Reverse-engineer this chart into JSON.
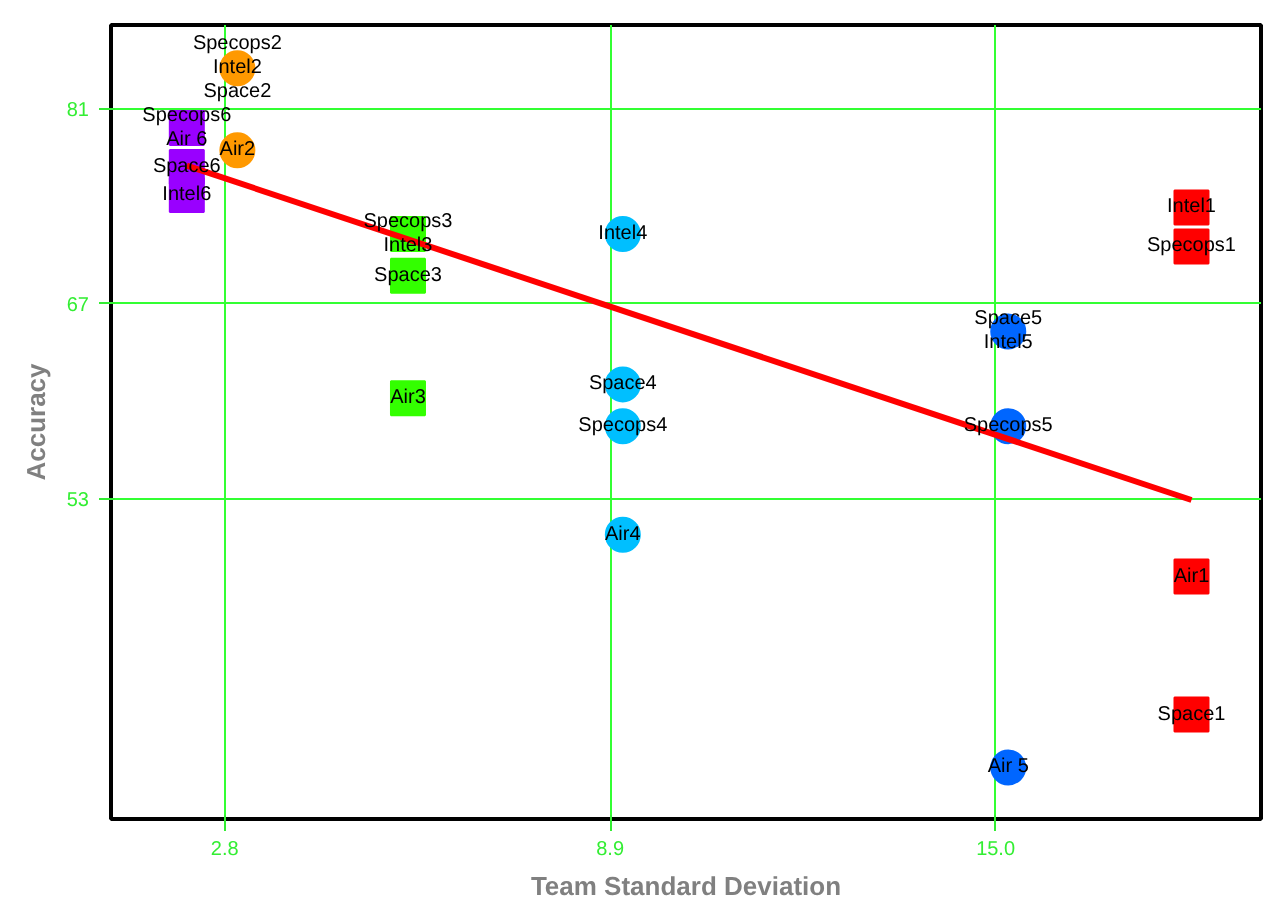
{
  "chart_data": {
    "type": "scatter",
    "xlabel": "Team Standard Deviation",
    "ylabel": "Accuracy",
    "xlim": [
      1,
      19.2
    ],
    "ylim": [
      30,
      87
    ],
    "xticks": [
      2.8,
      8.9,
      {
        "value": 15,
        "label": "15.0"
      }
    ],
    "yticks": [
      53,
      67,
      81
    ],
    "grid": true,
    "series": [
      {
        "color": "#9900ff",
        "marker": "square",
        "x": [
          2.2,
          2.2,
          2.2
        ],
        "values": [
          79.6,
          76.8,
          74.8
        ]
      },
      {
        "color": "#ff9900",
        "marker": "circle",
        "x": [
          3.0,
          3.0
        ],
        "values": [
          83.9,
          78.0
        ]
      },
      {
        "color": "#33ff00",
        "marker": "square",
        "x": [
          5.7,
          5.7,
          5.7
        ],
        "values": [
          72.0,
          69.0,
          60.2
        ]
      },
      {
        "color": "#00bfff",
        "marker": "circle",
        "x": [
          9.1,
          9.1,
          9.1,
          9.1
        ],
        "values": [
          72.0,
          61.2,
          58.2,
          50.4
        ]
      },
      {
        "color": "#0066ff",
        "marker": "circle",
        "x": [
          15.2,
          15.2,
          15.2
        ],
        "values": [
          65.0,
          58.2,
          33.7
        ]
      },
      {
        "color": "#ff0000",
        "marker": "square",
        "x": [
          18.1,
          18.1,
          18.1,
          18.1
        ],
        "values": [
          73.9,
          71.1,
          47.4,
          37.5
        ]
      },
      {
        "type": "line",
        "color": "#ff0000",
        "marker": "none",
        "x": [
          2.2,
          18.1
        ],
        "values": [
          76.9,
          52.9
        ]
      }
    ],
    "annotations": [
      {
        "text": "Specops6",
        "x": 2.2,
        "y": 79.6
      },
      {
        "text": "Air 6",
        "x": 2.2,
        "y": 79.6
      },
      {
        "text": "Space6",
        "x": 2.2,
        "y": 76.8
      },
      {
        "text": "Intel6",
        "x": 2.2,
        "y": 74.8
      },
      {
        "text": "Specops2",
        "x": 3.0,
        "y": 83.9
      },
      {
        "text": "Intel2",
        "x": 3.0,
        "y": 83.9
      },
      {
        "text": "Space2",
        "x": 3.0,
        "y": 83.9
      },
      {
        "text": "Air2",
        "x": 3.0,
        "y": 78.0
      },
      {
        "text": "Specops3",
        "x": 5.7,
        "y": 72.0
      },
      {
        "text": "Intel3",
        "x": 5.7,
        "y": 72.0
      },
      {
        "text": "Space3",
        "x": 5.7,
        "y": 69.0
      },
      {
        "text": "Air3",
        "x": 5.7,
        "y": 60.2
      },
      {
        "text": "Intel4",
        "x": 9.1,
        "y": 72.0
      },
      {
        "text": "Space4",
        "x": 9.1,
        "y": 61.2
      },
      {
        "text": "Specops4",
        "x": 9.1,
        "y": 58.2
      },
      {
        "text": "Air4",
        "x": 9.1,
        "y": 50.4
      },
      {
        "text": "Space5",
        "x": 15.2,
        "y": 65.0
      },
      {
        "text": "Intel5",
        "x": 15.2,
        "y": 65.0
      },
      {
        "text": "Specops5",
        "x": 15.2,
        "y": 58.2
      },
      {
        "text": "Air 5",
        "x": 15.2,
        "y": 33.7
      },
      {
        "text": "Intel1",
        "x": 18.1,
        "y": 73.9
      },
      {
        "text": "Specops1",
        "x": 18.1,
        "y": 71.1
      },
      {
        "text": "Air1",
        "x": 18.1,
        "y": 47.4
      },
      {
        "text": "Space1",
        "x": 18.1,
        "y": 37.5
      }
    ]
  }
}
